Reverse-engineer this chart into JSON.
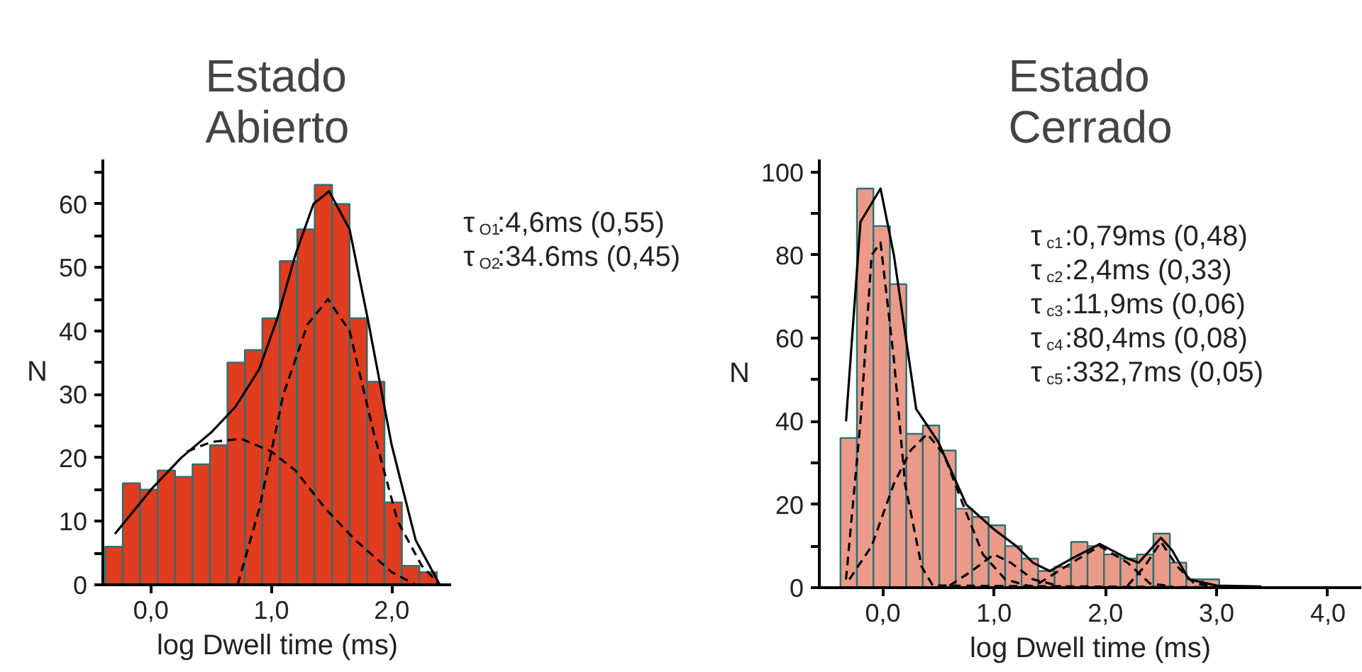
{
  "chart_data": [
    {
      "type": "histogram",
      "title": "Estado\nAbierto",
      "xlabel": "log Dwell time (ms)",
      "ylabel": "N",
      "bins": [
        -0.38,
        -0.235,
        -0.09,
        0.055,
        0.2,
        0.345,
        0.49,
        0.635,
        0.78,
        0.925,
        1.07,
        1.215,
        1.36,
        1.505,
        1.65,
        1.795,
        1.94,
        2.085,
        2.23,
        2.375
      ],
      "values": [
        6,
        16,
        15,
        18,
        17,
        19,
        22,
        35,
        37,
        42,
        51,
        56,
        63,
        60,
        42,
        32,
        13,
        3,
        2
      ],
      "color": "#e03c20",
      "series": [
        {
          "type": "line",
          "line_style": "solid",
          "color": "#000000",
          "x": [
            -0.3,
            0.0,
            0.25,
            0.5,
            0.7,
            0.9,
            1.05,
            1.2,
            1.35,
            1.48,
            1.65,
            1.8,
            2.0,
            2.2,
            2.4
          ],
          "values": [
            8,
            15,
            20,
            24,
            28,
            34,
            42,
            52,
            60,
            62,
            56,
            42,
            22,
            7,
            0
          ]
        },
        {
          "type": "line",
          "line_style": "dashed",
          "color": "#000000",
          "x": [
            0.3,
            0.5,
            0.75,
            1.0,
            1.2,
            1.45,
            1.7,
            2.0,
            2.2
          ],
          "values": [
            21,
            22.5,
            23,
            21,
            18,
            12,
            7,
            2,
            0
          ]
        },
        {
          "type": "line",
          "line_style": "dashed",
          "color": "#000000",
          "x": [
            0.72,
            0.9,
            1.1,
            1.3,
            1.47,
            1.65,
            1.85,
            2.05,
            2.25,
            2.4
          ],
          "values": [
            0,
            12,
            30,
            41,
            45,
            40,
            24,
            10,
            3,
            0
          ]
        }
      ],
      "xlim": [
        -0.4,
        2.5
      ],
      "ylim": [
        0,
        67
      ],
      "xticks": [
        {
          "value": 0,
          "label": "0,0"
        },
        {
          "value": 1,
          "label": "1,0"
        },
        {
          "value": 2,
          "label": "2,0"
        }
      ],
      "yticks": [
        0,
        {
          "value": 5,
          "label": null
        },
        10,
        {
          "value": 15,
          "label": null
        },
        20,
        {
          "value": 25,
          "label": null
        },
        30,
        {
          "value": 35,
          "label": null
        },
        40,
        {
          "value": 45,
          "label": null
        },
        50,
        {
          "value": 55,
          "label": null
        },
        60,
        {
          "value": 65,
          "label": null
        }
      ],
      "grid": false,
      "annotations": [
        "τ$_{O1}$:4,6ms (0,55)",
        "τ$_{O2}$:34.6ms (0,45)"
      ]
    },
    {
      "type": "histogram",
      "title": "Estado\nCerrado",
      "xlabel": "log Dwell time (ms)",
      "ylabel": "N",
      "bins": [
        -0.38,
        -0.232,
        -0.084,
        0.064,
        0.212,
        0.36,
        0.508,
        0.656,
        0.804,
        0.952,
        1.1,
        1.248,
        1.396,
        1.544,
        1.692,
        1.84,
        1.988,
        2.136,
        2.284,
        2.432,
        2.58,
        2.728,
        2.876,
        3.024
      ],
      "values": [
        36,
        96,
        87,
        73,
        37,
        39,
        33,
        19,
        17,
        15,
        10,
        7,
        4,
        5,
        11,
        10,
        8,
        7,
        8,
        13,
        6,
        2,
        2
      ],
      "color": "#eb9a8a",
      "series": [
        {
          "type": "line",
          "line_style": "solid",
          "color": "#000000",
          "x": [
            -0.33,
            -0.2,
            -0.02,
            0.1,
            0.3,
            0.5,
            0.75,
            1.0,
            1.2,
            1.35,
            1.5,
            1.7,
            1.95,
            2.2,
            2.3,
            2.5,
            2.6,
            2.75,
            3.0,
            3.4
          ],
          "values": [
            40,
            88,
            96,
            80,
            43,
            35,
            20,
            14,
            10,
            6,
            4,
            7,
            10.5,
            7,
            6,
            12,
            9,
            2,
            0.5,
            0.3
          ]
        },
        {
          "type": "line",
          "line_style": "dashed",
          "color": "#000000",
          "x": [
            -0.33,
            -0.2,
            -0.1,
            -0.02,
            0.1,
            0.2,
            0.35,
            0.45,
            3.4
          ],
          "values": [
            2,
            40,
            80,
            83,
            55,
            25,
            5,
            0.5,
            0
          ]
        },
        {
          "type": "line",
          "line_style": "dashed",
          "color": "#000000",
          "x": [
            -0.3,
            -0.1,
            0.1,
            0.25,
            0.4,
            0.55,
            0.75,
            0.9,
            1.1,
            1.3,
            1.5
          ],
          "values": [
            2,
            10,
            25,
            33,
            37,
            32,
            18,
            8,
            2,
            0.5,
            0
          ]
        },
        {
          "type": "line",
          "line_style": "dashed",
          "color": "#000000",
          "x": [
            0.6,
            0.8,
            1.0,
            1.15,
            1.35,
            1.6
          ],
          "values": [
            0.5,
            4,
            8,
            6,
            2,
            0.3
          ]
        },
        {
          "type": "line",
          "line_style": "dashed",
          "color": "#000000",
          "x": [
            1.4,
            1.7,
            1.95,
            2.2,
            2.4,
            2.6
          ],
          "values": [
            1,
            6,
            10,
            6,
            1,
            0.3
          ]
        },
        {
          "type": "line",
          "line_style": "dashed",
          "color": "#000000",
          "x": [
            2.2,
            2.35,
            2.5,
            2.65,
            2.8,
            3.0
          ],
          "values": [
            0.5,
            5,
            11,
            5,
            1,
            0.3
          ]
        }
      ],
      "xlim": [
        -0.57,
        4.3
      ],
      "ylim": [
        0,
        103
      ],
      "xticks": [
        {
          "value": 0,
          "label": "0,0"
        },
        {
          "value": 1,
          "label": "1,0"
        },
        {
          "value": 2,
          "label": "2,0"
        },
        {
          "value": 3,
          "label": "3,0"
        },
        {
          "value": 4,
          "label": "4,0"
        }
      ],
      "yticks": [
        0,
        {
          "value": 10,
          "label": null
        },
        20,
        {
          "value": 30,
          "label": null
        },
        40,
        {
          "value": 50,
          "label": null
        },
        60,
        {
          "value": 70,
          "label": null
        },
        80,
        {
          "value": 90,
          "label": null
        },
        100
      ],
      "grid": false,
      "annotations": [
        "τ$_{c1}$:0,79ms (0,48)",
        "τ$_{c2}$:2,4ms (0,33)",
        "τ$_{c3}$:11,9ms (0,06)",
        "τ$_{c4}$:80,4ms (0,08)",
        "τ$_{c5}$:332,7ms (0,05)"
      ]
    }
  ]
}
